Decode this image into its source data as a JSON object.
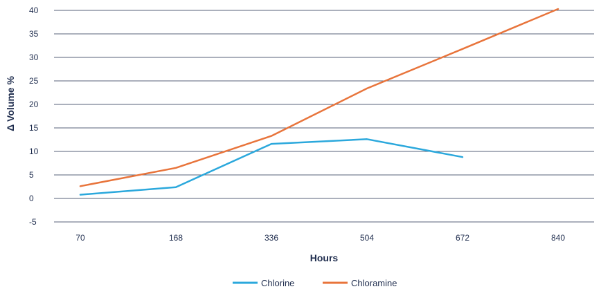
{
  "chart_data": {
    "type": "line",
    "xlabel": "Hours",
    "ylabel": "Δ Volume %",
    "categories": [
      "70",
      "168",
      "336",
      "504",
      "672",
      "840"
    ],
    "ylim": [
      -5,
      40
    ],
    "yticks": [
      -5,
      0,
      5,
      10,
      15,
      20,
      25,
      30,
      35,
      40
    ],
    "grid": "horizontal",
    "legend_position": "bottom",
    "series": [
      {
        "name": "Chlorine",
        "color": "#2ba8dc",
        "values": [
          0.8,
          2.4,
          11.6,
          12.6,
          8.8,
          null
        ]
      },
      {
        "name": "Chloramine",
        "color": "#e8743b",
        "values": [
          2.6,
          6.5,
          13.3,
          23.4,
          31.8,
          40.3
        ]
      }
    ]
  }
}
